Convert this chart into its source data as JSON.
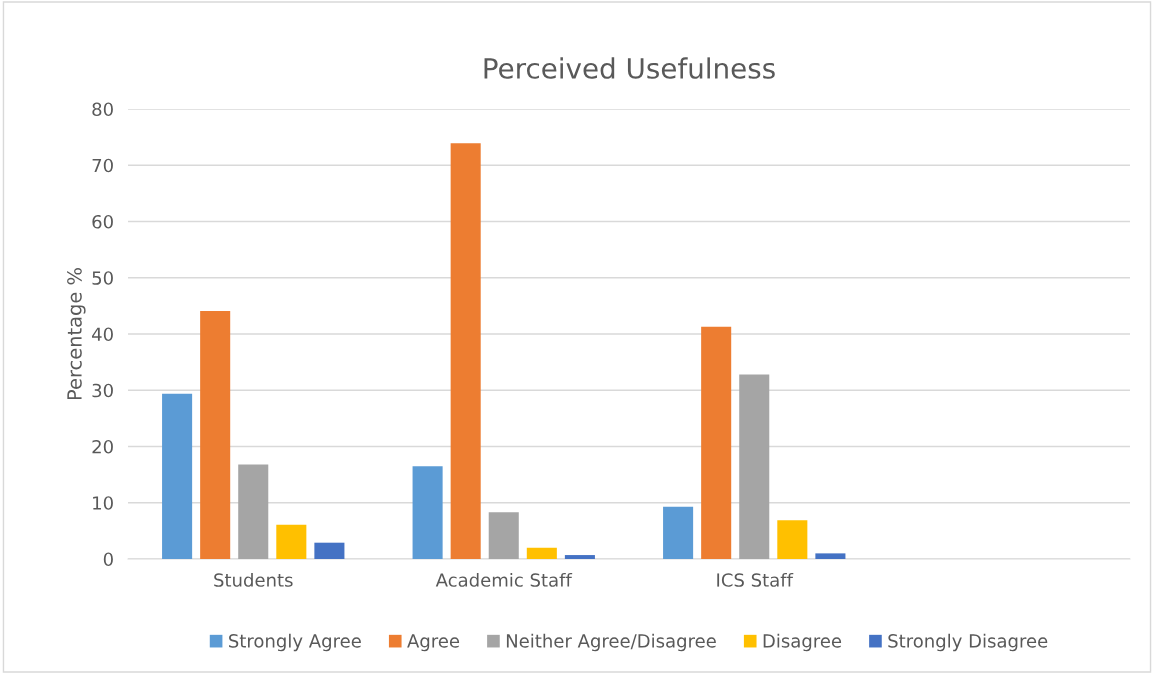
{
  "chart_data": {
    "type": "bar",
    "title": "Perceived Usefulness",
    "ylabel": "Percentage %",
    "categories": [
      "Students",
      "Academic Staff",
      "ICS Staff",
      null
    ],
    "series": [
      {
        "name": "Strongly Agree",
        "color": "#5b9bd5",
        "values": [
          29.4,
          16.5,
          9.3,
          null
        ]
      },
      {
        "name": "Agree",
        "color": "#ed7d31",
        "values": [
          44.1,
          73.9,
          41.3,
          null
        ]
      },
      {
        "name": "Neither Agree/Disagree",
        "color": "#a5a5a5",
        "values": [
          16.8,
          8.3,
          32.8,
          null
        ]
      },
      {
        "name": "Disagree",
        "color": "#ffc000",
        "values": [
          6.1,
          2.0,
          6.9,
          null
        ]
      },
      {
        "name": "Strongly Disagree",
        "color": "#4472c4",
        "values": [
          2.9,
          0.7,
          1.0,
          null
        ]
      }
    ],
    "ylim": [
      0,
      80
    ],
    "yticks": [
      0,
      10,
      20,
      30,
      40,
      50,
      60,
      70,
      80
    ],
    "grid": "y",
    "legend": "bottom"
  }
}
